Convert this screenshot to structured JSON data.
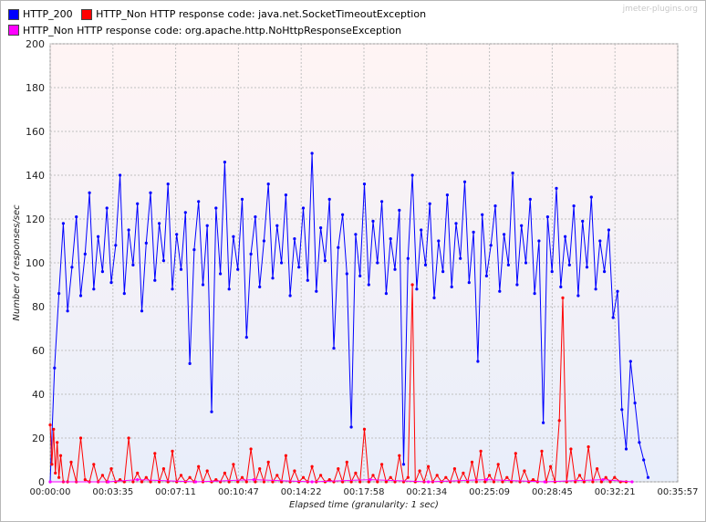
{
  "watermark": "jmeter-plugins.org",
  "colors": {
    "series_200": "#0000ff",
    "series_timeout": "#ff0000",
    "series_nohttp": "#ff00ff",
    "grid": "#c0c0c0"
  },
  "chart_data": {
    "type": "line",
    "xlabel": "Elapsed time (granularity: 1 sec)",
    "ylabel": "Number of responses/sec",
    "ylim": [
      0,
      200
    ],
    "yticks": [
      0,
      20,
      40,
      60,
      80,
      100,
      120,
      140,
      160,
      180,
      200
    ],
    "xlim_seconds": [
      0,
      2157
    ],
    "xticks": [
      "00:00:00",
      "00:03:35",
      "00:07:11",
      "00:10:47",
      "00:14:22",
      "00:17:58",
      "00:21:34",
      "00:25:09",
      "00:28:45",
      "00:32:21",
      "00:35:57"
    ],
    "legend_position": "top-left",
    "grid": true,
    "series": [
      {
        "name": "HTTP_200",
        "color": "#0000ff",
        "points": [
          [
            0,
            0
          ],
          [
            15,
            52
          ],
          [
            30,
            86
          ],
          [
            45,
            118
          ],
          [
            60,
            78
          ],
          [
            75,
            98
          ],
          [
            90,
            121
          ],
          [
            105,
            85
          ],
          [
            120,
            104
          ],
          [
            135,
            132
          ],
          [
            150,
            88
          ],
          [
            165,
            112
          ],
          [
            180,
            96
          ],
          [
            195,
            125
          ],
          [
            210,
            91
          ],
          [
            225,
            108
          ],
          [
            240,
            140
          ],
          [
            255,
            86
          ],
          [
            270,
            115
          ],
          [
            285,
            99
          ],
          [
            300,
            127
          ],
          [
            315,
            78
          ],
          [
            330,
            109
          ],
          [
            345,
            132
          ],
          [
            360,
            92
          ],
          [
            375,
            118
          ],
          [
            390,
            101
          ],
          [
            405,
            136
          ],
          [
            420,
            88
          ],
          [
            435,
            113
          ],
          [
            450,
            97
          ],
          [
            465,
            123
          ],
          [
            480,
            54
          ],
          [
            495,
            106
          ],
          [
            510,
            128
          ],
          [
            525,
            90
          ],
          [
            540,
            117
          ],
          [
            555,
            32
          ],
          [
            570,
            125
          ],
          [
            585,
            95
          ],
          [
            600,
            146
          ],
          [
            615,
            88
          ],
          [
            630,
            112
          ],
          [
            645,
            97
          ],
          [
            660,
            129
          ],
          [
            675,
            66
          ],
          [
            690,
            104
          ],
          [
            705,
            121
          ],
          [
            720,
            89
          ],
          [
            735,
            110
          ],
          [
            750,
            136
          ],
          [
            765,
            93
          ],
          [
            780,
            117
          ],
          [
            795,
            100
          ],
          [
            810,
            131
          ],
          [
            825,
            85
          ],
          [
            840,
            111
          ],
          [
            855,
            98
          ],
          [
            870,
            125
          ],
          [
            885,
            92
          ],
          [
            900,
            150
          ],
          [
            915,
            87
          ],
          [
            930,
            116
          ],
          [
            945,
            101
          ],
          [
            960,
            129
          ],
          [
            975,
            61
          ],
          [
            990,
            107
          ],
          [
            1005,
            122
          ],
          [
            1020,
            95
          ],
          [
            1035,
            25
          ],
          [
            1050,
            113
          ],
          [
            1065,
            94
          ],
          [
            1080,
            136
          ],
          [
            1095,
            90
          ],
          [
            1110,
            119
          ],
          [
            1125,
            100
          ],
          [
            1140,
            128
          ],
          [
            1155,
            86
          ],
          [
            1170,
            111
          ],
          [
            1185,
            97
          ],
          [
            1200,
            124
          ],
          [
            1215,
            8
          ],
          [
            1230,
            102
          ],
          [
            1245,
            140
          ],
          [
            1260,
            88
          ],
          [
            1275,
            115
          ],
          [
            1290,
            99
          ],
          [
            1305,
            127
          ],
          [
            1320,
            84
          ],
          [
            1335,
            110
          ],
          [
            1350,
            96
          ],
          [
            1365,
            131
          ],
          [
            1380,
            89
          ],
          [
            1395,
            118
          ],
          [
            1410,
            102
          ],
          [
            1425,
            137
          ],
          [
            1440,
            91
          ],
          [
            1455,
            114
          ],
          [
            1470,
            55
          ],
          [
            1485,
            122
          ],
          [
            1500,
            94
          ],
          [
            1515,
            108
          ],
          [
            1530,
            126
          ],
          [
            1545,
            87
          ],
          [
            1560,
            113
          ],
          [
            1575,
            99
          ],
          [
            1590,
            141
          ],
          [
            1605,
            90
          ],
          [
            1620,
            117
          ],
          [
            1635,
            100
          ],
          [
            1650,
            129
          ],
          [
            1665,
            86
          ],
          [
            1680,
            110
          ],
          [
            1695,
            27
          ],
          [
            1710,
            121
          ],
          [
            1725,
            96
          ],
          [
            1740,
            134
          ],
          [
            1755,
            89
          ],
          [
            1770,
            112
          ],
          [
            1785,
            99
          ],
          [
            1800,
            126
          ],
          [
            1815,
            85
          ],
          [
            1830,
            119
          ],
          [
            1845,
            98
          ],
          [
            1860,
            130
          ],
          [
            1875,
            88
          ],
          [
            1890,
            110
          ],
          [
            1905,
            96
          ],
          [
            1920,
            115
          ],
          [
            1935,
            75
          ],
          [
            1950,
            87
          ],
          [
            1965,
            33
          ],
          [
            1980,
            15
          ],
          [
            1995,
            55
          ],
          [
            2010,
            36
          ],
          [
            2025,
            18
          ],
          [
            2040,
            10
          ],
          [
            2055,
            2
          ]
        ]
      },
      {
        "name": "HTTP_Non HTTP response code: java.net.SocketTimeoutException",
        "color": "#ff0000",
        "points": [
          [
            0,
            26
          ],
          [
            6,
            8
          ],
          [
            12,
            24
          ],
          [
            18,
            4
          ],
          [
            24,
            18
          ],
          [
            30,
            2
          ],
          [
            36,
            12
          ],
          [
            45,
            0
          ],
          [
            60,
            0
          ],
          [
            72,
            9
          ],
          [
            90,
            0
          ],
          [
            105,
            20
          ],
          [
            120,
            1
          ],
          [
            135,
            0
          ],
          [
            150,
            8
          ],
          [
            165,
            0
          ],
          [
            180,
            3
          ],
          [
            195,
            0
          ],
          [
            210,
            6
          ],
          [
            225,
            0
          ],
          [
            240,
            1
          ],
          [
            255,
            0
          ],
          [
            270,
            20
          ],
          [
            285,
            0
          ],
          [
            300,
            4
          ],
          [
            315,
            0
          ],
          [
            330,
            2
          ],
          [
            345,
            0
          ],
          [
            360,
            13
          ],
          [
            375,
            0
          ],
          [
            390,
            6
          ],
          [
            405,
            0
          ],
          [
            420,
            14
          ],
          [
            435,
            0
          ],
          [
            450,
            3
          ],
          [
            465,
            0
          ],
          [
            480,
            2
          ],
          [
            495,
            0
          ],
          [
            510,
            7
          ],
          [
            525,
            0
          ],
          [
            540,
            5
          ],
          [
            555,
            0
          ],
          [
            570,
            1
          ],
          [
            585,
            0
          ],
          [
            600,
            4
          ],
          [
            615,
            0
          ],
          [
            630,
            8
          ],
          [
            645,
            0
          ],
          [
            660,
            2
          ],
          [
            675,
            0
          ],
          [
            690,
            15
          ],
          [
            705,
            0
          ],
          [
            720,
            6
          ],
          [
            735,
            0
          ],
          [
            750,
            9
          ],
          [
            765,
            0
          ],
          [
            780,
            3
          ],
          [
            795,
            0
          ],
          [
            810,
            12
          ],
          [
            825,
            0
          ],
          [
            840,
            5
          ],
          [
            855,
            0
          ],
          [
            870,
            2
          ],
          [
            885,
            0
          ],
          [
            900,
            7
          ],
          [
            915,
            0
          ],
          [
            930,
            3
          ],
          [
            945,
            0
          ],
          [
            960,
            1
          ],
          [
            975,
            0
          ],
          [
            990,
            6
          ],
          [
            1005,
            0
          ],
          [
            1020,
            9
          ],
          [
            1035,
            0
          ],
          [
            1050,
            4
          ],
          [
            1065,
            0
          ],
          [
            1080,
            24
          ],
          [
            1095,
            0
          ],
          [
            1110,
            3
          ],
          [
            1125,
            0
          ],
          [
            1140,
            8
          ],
          [
            1155,
            0
          ],
          [
            1170,
            2
          ],
          [
            1185,
            0
          ],
          [
            1200,
            12
          ],
          [
            1215,
            0
          ],
          [
            1230,
            2
          ],
          [
            1245,
            90
          ],
          [
            1255,
            0
          ],
          [
            1270,
            5
          ],
          [
            1285,
            0
          ],
          [
            1300,
            7
          ],
          [
            1315,
            0
          ],
          [
            1330,
            3
          ],
          [
            1345,
            0
          ],
          [
            1360,
            2
          ],
          [
            1375,
            0
          ],
          [
            1390,
            6
          ],
          [
            1405,
            0
          ],
          [
            1420,
            4
          ],
          [
            1435,
            0
          ],
          [
            1450,
            9
          ],
          [
            1465,
            0
          ],
          [
            1480,
            14
          ],
          [
            1495,
            0
          ],
          [
            1510,
            3
          ],
          [
            1525,
            0
          ],
          [
            1540,
            8
          ],
          [
            1555,
            0
          ],
          [
            1570,
            2
          ],
          [
            1585,
            0
          ],
          [
            1600,
            13
          ],
          [
            1615,
            0
          ],
          [
            1630,
            5
          ],
          [
            1645,
            0
          ],
          [
            1660,
            1
          ],
          [
            1675,
            0
          ],
          [
            1690,
            14
          ],
          [
            1705,
            0
          ],
          [
            1720,
            7
          ],
          [
            1735,
            0
          ],
          [
            1750,
            28
          ],
          [
            1762,
            84
          ],
          [
            1775,
            0
          ],
          [
            1790,
            15
          ],
          [
            1805,
            0
          ],
          [
            1820,
            3
          ],
          [
            1835,
            0
          ],
          [
            1850,
            16
          ],
          [
            1865,
            0
          ],
          [
            1880,
            6
          ],
          [
            1895,
            0
          ],
          [
            1910,
            2
          ],
          [
            1925,
            0
          ],
          [
            1940,
            2
          ],
          [
            1960,
            0
          ],
          [
            1980,
            0
          ]
        ]
      },
      {
        "name": "HTTP_Non HTTP response code: org.apache.http.NoHttpResponseException",
        "color": "#ff00ff",
        "points": [
          [
            0,
            0
          ],
          [
            200,
            0
          ],
          [
            300,
            1
          ],
          [
            500,
            0
          ],
          [
            700,
            1
          ],
          [
            900,
            0
          ],
          [
            1100,
            1
          ],
          [
            1300,
            0
          ],
          [
            1500,
            1
          ],
          [
            1700,
            0
          ],
          [
            1900,
            1
          ],
          [
            2000,
            0
          ]
        ]
      }
    ]
  }
}
